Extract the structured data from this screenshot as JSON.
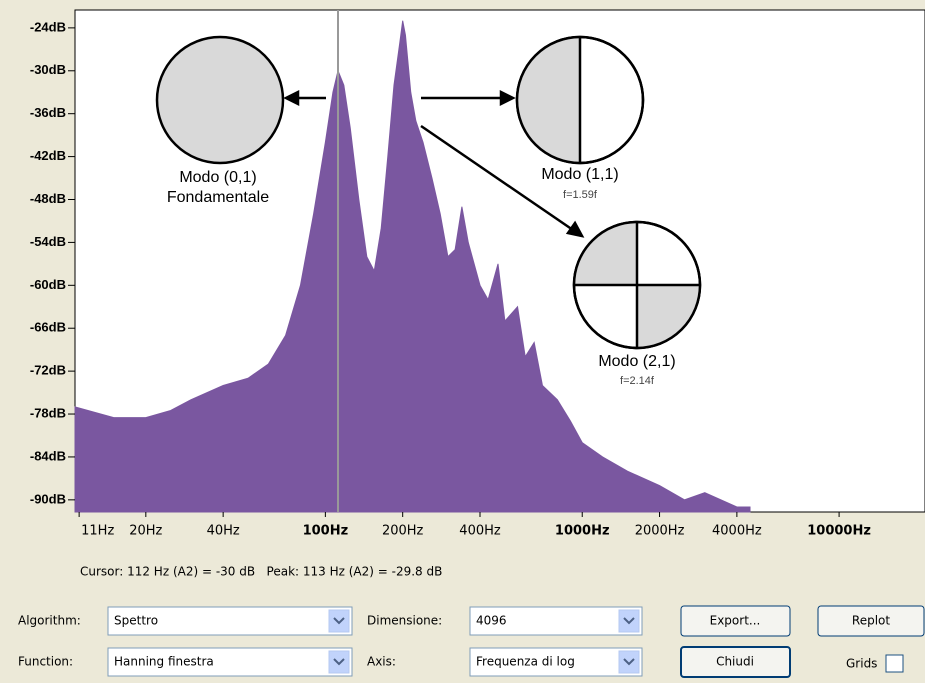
{
  "chart_data": {
    "type": "area",
    "x": [
      10.6,
      15,
      20,
      25,
      30,
      40,
      50,
      60,
      70,
      80,
      90,
      100,
      107,
      112,
      118,
      125,
      135,
      145,
      155,
      165,
      175,
      185,
      195,
      200,
      205,
      215,
      225,
      240,
      260,
      280,
      300,
      320,
      340,
      360,
      400,
      430,
      470,
      500,
      560,
      600,
      650,
      700,
      800,
      900,
      1000,
      1200,
      1500,
      2000,
      2500,
      3000,
      4000,
      4500
    ],
    "values": [
      -77,
      -78.5,
      -78.5,
      -77.5,
      -76,
      -74,
      -73,
      -71,
      -67,
      -60,
      -50,
      -40,
      -33,
      -30,
      -32,
      -38,
      -48,
      -56,
      -58,
      -52,
      -42,
      -32,
      -26,
      -23,
      -25,
      -33,
      -37,
      -40,
      -45,
      -50,
      -56,
      -55,
      -49,
      -54,
      -60,
      -62,
      -57,
      -65,
      -63,
      -70,
      -68,
      -74,
      -76,
      -79,
      -82,
      -84,
      -86,
      -88,
      -90,
      -89,
      -91,
      -91
    ],
    "color": "#7a57a0",
    "xscale": "log",
    "xlim": [
      10.6,
      21600
    ],
    "xticks": [
      {
        "value": 11,
        "label": "11Hz"
      },
      {
        "value": 20,
        "label": "20Hz"
      },
      {
        "value": 40,
        "label": "40Hz"
      },
      {
        "value": 100,
        "label": "100Hz"
      },
      {
        "value": 200,
        "label": "200Hz"
      },
      {
        "value": 400,
        "label": "400Hz"
      },
      {
        "value": 1000,
        "label": "1000Hz"
      },
      {
        "value": 2000,
        "label": "2000Hz"
      },
      {
        "value": 4000,
        "label": "4000Hz"
      },
      {
        "value": 10000,
        "label": "10000Hz"
      }
    ],
    "ylim": [
      -91.7,
      -21.5
    ],
    "yticks": [
      {
        "value": -24,
        "label": "-24dB"
      },
      {
        "value": -30,
        "label": "-30dB"
      },
      {
        "value": -36,
        "label": "-36dB"
      },
      {
        "value": -42,
        "label": "-42dB"
      },
      {
        "value": -48,
        "label": "-48dB"
      },
      {
        "value": -54,
        "label": "-54dB"
      },
      {
        "value": -60,
        "label": "-60dB"
      },
      {
        "value": -66,
        "label": "-66dB"
      },
      {
        "value": -72,
        "label": "-72dB"
      },
      {
        "value": -78,
        "label": "-78dB"
      },
      {
        "value": -84,
        "label": "-84dB"
      },
      {
        "value": -90,
        "label": "-90dB"
      }
    ]
  },
  "annotations": [
    "Modo (0,1)",
    "Fondamentale",
    "Modo (1,1)",
    "f=1.59f",
    "Modo (2,1)",
    "f=2.14f"
  ],
  "status": "Cursor: 112 Hz (A2) = -30 dB   Peak: 113 Hz (A2) = -29.8 dB",
  "controls": {
    "algorithm_label": "Algorithm:",
    "algorithm": "Spettro",
    "size_label": "Dimensione:",
    "size": "4096",
    "function_label": "Function:",
    "function": "Hanning finestra",
    "axis_label": "Axis:",
    "axis": "Frequenza di log",
    "export": "Export...",
    "replot": "Replot",
    "close": "Chiudi",
    "grids": "Grids"
  }
}
